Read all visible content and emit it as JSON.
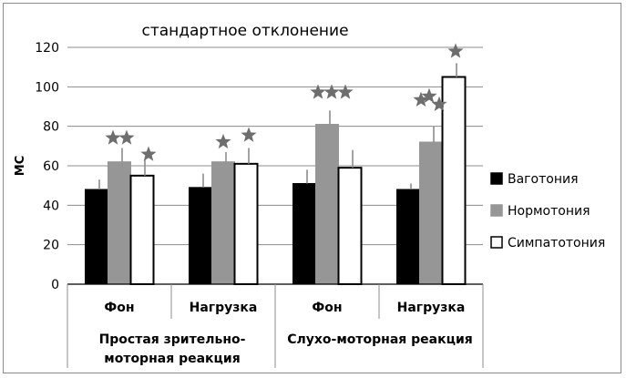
{
  "chart_data": {
    "type": "bar",
    "title": "стандартное отклонение",
    "ylabel": "МС",
    "xlabel": "",
    "ylim": [
      0,
      120
    ],
    "ytick_step": 20,
    "yticks": [
      "0",
      "20",
      "40",
      "60",
      "80",
      "100",
      "120"
    ],
    "grid": true,
    "legend_position": "right",
    "categories": [
      "Фон",
      "Нагрузка",
      "Фон",
      "Нагрузка"
    ],
    "groups": [
      {
        "label_lines": [
          "Простая зрительно-",
          "моторная реакция"
        ],
        "categories": [
          0,
          1
        ]
      },
      {
        "label_lines": [
          "Слухо-моторная реакция"
        ],
        "categories": [
          2,
          3
        ]
      }
    ],
    "series": [
      {
        "name": "Ваготония",
        "color": "#000000",
        "values": [
          48,
          49,
          51,
          48
        ],
        "errors": [
          5,
          7,
          7,
          3
        ]
      },
      {
        "name": "Нормотония",
        "color": "#969696",
        "values": [
          62,
          62,
          81,
          72
        ],
        "errors": [
          7,
          5,
          7,
          8
        ]
      },
      {
        "name": "Симпатотония",
        "color": "#ffffff",
        "values": [
          55,
          61,
          59,
          105
        ],
        "errors": [
          8,
          8,
          9,
          7
        ]
      }
    ],
    "annotations": [
      {
        "category": 0,
        "series": 1,
        "marks": [
          [
            -7,
            11
          ],
          [
            8,
            11
          ]
        ]
      },
      {
        "category": 0,
        "series": 2,
        "marks": [
          [
            7,
            6
          ]
        ]
      },
      {
        "category": 1,
        "series": 1,
        "marks": [
          [
            0,
            11
          ]
        ]
      },
      {
        "category": 1,
        "series": 2,
        "marks": [
          [
            3,
            14
          ]
        ]
      },
      {
        "category": 2,
        "series": 1,
        "marks": [
          [
            -10,
            20
          ],
          [
            5,
            20
          ],
          [
            20,
            20
          ]
        ]
      },
      {
        "category": 2,
        "series": 0,
        "marks": []
      },
      {
        "category": 3,
        "series": 1,
        "marks": [
          [
            -11,
            29
          ],
          [
            -2,
            33
          ],
          [
            9,
            24
          ]
        ]
      },
      {
        "category": 3,
        "series": 2,
        "marks": [
          [
            2,
            13
          ]
        ]
      }
    ]
  }
}
